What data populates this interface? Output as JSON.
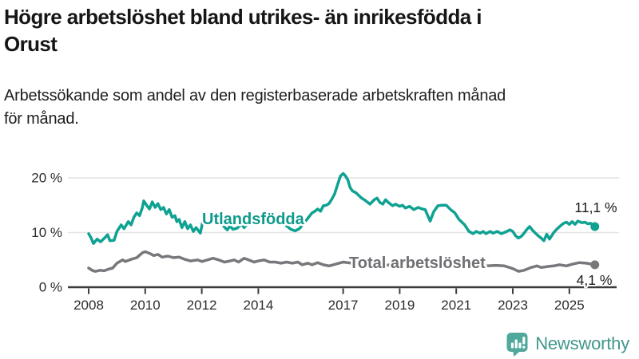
{
  "header": {
    "title": "Högre arbetslöshet bland utrikes- än inrikesfödda i Orust",
    "title_lines": [
      "Högre arbetslöshet bland utrikes- än inrikesfödda i",
      "Orust"
    ],
    "subtitle": "Arbetssökande som andel av den registerbaserade arbetskraften månad för månad.",
    "subtitle_lines": [
      "Arbetssökande som andel av den registerbaserade arbetskraften månad",
      "för månad."
    ]
  },
  "footer": {
    "logo_text": "Newsworthy",
    "logo_icon": "bar-chart-speech-bubble-icon",
    "logo_icon_color": "#4FA89B",
    "logo_text_color": "#3F988C"
  },
  "colors": {
    "foreign_born_line": "#0FA192",
    "foreign_born_label": "#0E9A8C",
    "total_line": "#78787C",
    "total_label": "#6F6F74",
    "gridline": "#E4E4E4",
    "axis": "#3C3C3C",
    "text": "#1A1A1A"
  },
  "chart_data": {
    "type": "line",
    "title": "Högre arbetslöshet bland utrikes- än inrikesfödda i Orust",
    "subtitle": "Arbetssökande som andel av den registerbaserade arbetskraften månad för månad.",
    "x_unit": "år (månadsdata som decimalår)",
    "y_unit": "%",
    "grid": "horizontal",
    "legend_position": "inline-labels",
    "x_axis": {
      "ticks": [
        2008,
        2010,
        2012,
        2014,
        2017,
        2019,
        2021,
        2023,
        2025
      ],
      "range": [
        2007.9,
        2026.6
      ]
    },
    "y_axis": {
      "ticks": [
        {
          "value": 0,
          "label": "0 %"
        },
        {
          "value": 10,
          "label": "10 %"
        },
        {
          "value": 20,
          "label": "20 %"
        }
      ],
      "range": [
        0,
        21.8
      ]
    },
    "series": [
      {
        "name": "Utlandsfödda",
        "color": "#0FA192",
        "end_value": 11.1,
        "end_value_label": "11,1 %",
        "points": [
          [
            2008.0,
            9.8
          ],
          [
            2008.08,
            9.1
          ],
          [
            2008.17,
            8.0
          ],
          [
            2008.3,
            8.8
          ],
          [
            2008.42,
            8.3
          ],
          [
            2008.58,
            9.1
          ],
          [
            2008.67,
            9.6
          ],
          [
            2008.75,
            8.5
          ],
          [
            2008.9,
            8.6
          ],
          [
            2009.0,
            10.2
          ],
          [
            2009.15,
            11.4
          ],
          [
            2009.25,
            10.7
          ],
          [
            2009.4,
            12.0
          ],
          [
            2009.5,
            11.4
          ],
          [
            2009.6,
            12.8
          ],
          [
            2009.7,
            13.6
          ],
          [
            2009.8,
            13.1
          ],
          [
            2009.9,
            14.6
          ],
          [
            2009.95,
            15.8
          ],
          [
            2010.05,
            15.0
          ],
          [
            2010.15,
            14.3
          ],
          [
            2010.25,
            15.6
          ],
          [
            2010.35,
            14.6
          ],
          [
            2010.45,
            15.3
          ],
          [
            2010.55,
            14.2
          ],
          [
            2010.65,
            14.6
          ],
          [
            2010.75,
            13.4
          ],
          [
            2010.85,
            14.2
          ],
          [
            2010.95,
            12.8
          ],
          [
            2011.05,
            13.1
          ],
          [
            2011.12,
            12.0
          ],
          [
            2011.2,
            12.4
          ],
          [
            2011.3,
            10.9
          ],
          [
            2011.4,
            12.0
          ],
          [
            2011.5,
            10.7
          ],
          [
            2011.6,
            11.4
          ],
          [
            2011.7,
            10.2
          ],
          [
            2011.8,
            10.9
          ],
          [
            2011.95,
            9.9
          ],
          [
            2012.05,
            12.4
          ],
          [
            2012.2,
            11.8
          ],
          [
            2012.35,
            12.4
          ],
          [
            2012.5,
            11.6
          ],
          [
            2012.65,
            12.0
          ],
          [
            2012.8,
            11.0
          ],
          [
            2012.9,
            10.5
          ],
          [
            2013.0,
            11.2
          ],
          [
            2013.1,
            10.6
          ],
          [
            2013.25,
            10.8
          ],
          [
            2013.4,
            11.5
          ],
          [
            2013.5,
            10.9
          ],
          [
            2013.65,
            11.8
          ],
          [
            2013.8,
            12.2
          ],
          [
            2013.95,
            11.6
          ],
          [
            2014.1,
            12.5
          ],
          [
            2014.25,
            13.2
          ],
          [
            2014.4,
            12.6
          ],
          [
            2014.55,
            13.0
          ],
          [
            2014.7,
            12.4
          ],
          [
            2014.85,
            11.8
          ],
          [
            2015.0,
            11.2
          ],
          [
            2015.15,
            10.6
          ],
          [
            2015.3,
            10.3
          ],
          [
            2015.45,
            10.7
          ],
          [
            2015.6,
            11.6
          ],
          [
            2015.75,
            12.6
          ],
          [
            2015.9,
            13.6
          ],
          [
            2016.0,
            13.9
          ],
          [
            2016.1,
            14.3
          ],
          [
            2016.2,
            13.9
          ],
          [
            2016.3,
            14.9
          ],
          [
            2016.4,
            15.0
          ],
          [
            2016.5,
            15.3
          ],
          [
            2016.6,
            16.1
          ],
          [
            2016.7,
            17.1
          ],
          [
            2016.8,
            18.7
          ],
          [
            2016.9,
            20.3
          ],
          [
            2017.0,
            20.8
          ],
          [
            2017.08,
            20.4
          ],
          [
            2017.17,
            19.6
          ],
          [
            2017.25,
            18.2
          ],
          [
            2017.33,
            17.6
          ],
          [
            2017.45,
            17.3
          ],
          [
            2017.55,
            16.8
          ],
          [
            2017.65,
            16.3
          ],
          [
            2017.75,
            16.0
          ],
          [
            2017.85,
            15.6
          ],
          [
            2017.95,
            15.2
          ],
          [
            2018.1,
            16.0
          ],
          [
            2018.2,
            16.3
          ],
          [
            2018.3,
            15.5
          ],
          [
            2018.4,
            15.2
          ],
          [
            2018.5,
            16.0
          ],
          [
            2018.6,
            15.5
          ],
          [
            2018.75,
            14.9
          ],
          [
            2018.85,
            15.2
          ],
          [
            2019.0,
            14.8
          ],
          [
            2019.1,
            15.0
          ],
          [
            2019.2,
            14.5
          ],
          [
            2019.35,
            14.8
          ],
          [
            2019.5,
            14.2
          ],
          [
            2019.65,
            14.6
          ],
          [
            2019.8,
            14.3
          ],
          [
            2019.9,
            14.2
          ],
          [
            2020.0,
            13.0
          ],
          [
            2020.08,
            12.1
          ],
          [
            2020.2,
            13.8
          ],
          [
            2020.35,
            14.9
          ],
          [
            2020.5,
            15.0
          ],
          [
            2020.65,
            15.0
          ],
          [
            2020.8,
            14.2
          ],
          [
            2020.95,
            13.6
          ],
          [
            2021.1,
            12.4
          ],
          [
            2021.3,
            11.4
          ],
          [
            2021.45,
            10.2
          ],
          [
            2021.6,
            9.8
          ],
          [
            2021.7,
            10.2
          ],
          [
            2021.85,
            9.9
          ],
          [
            2021.95,
            10.2
          ],
          [
            2022.05,
            9.8
          ],
          [
            2022.2,
            10.2
          ],
          [
            2022.3,
            9.9
          ],
          [
            2022.45,
            10.2
          ],
          [
            2022.6,
            9.8
          ],
          [
            2022.75,
            10.1
          ],
          [
            2022.9,
            10.5
          ],
          [
            2023.0,
            10.2
          ],
          [
            2023.1,
            9.4
          ],
          [
            2023.2,
            9.0
          ],
          [
            2023.3,
            9.3
          ],
          [
            2023.4,
            9.9
          ],
          [
            2023.5,
            10.6
          ],
          [
            2023.6,
            11.1
          ],
          [
            2023.7,
            10.4
          ],
          [
            2023.8,
            9.9
          ],
          [
            2023.9,
            9.4
          ],
          [
            2024.0,
            9.0
          ],
          [
            2024.1,
            8.5
          ],
          [
            2024.2,
            9.7
          ],
          [
            2024.3,
            8.8
          ],
          [
            2024.45,
            10.0
          ],
          [
            2024.55,
            10.6
          ],
          [
            2024.7,
            11.3
          ],
          [
            2024.8,
            11.7
          ],
          [
            2024.9,
            11.9
          ],
          [
            2025.0,
            11.5
          ],
          [
            2025.1,
            12.0
          ],
          [
            2025.2,
            11.5
          ],
          [
            2025.3,
            12.1
          ],
          [
            2025.45,
            11.8
          ],
          [
            2025.55,
            11.9
          ],
          [
            2025.65,
            11.6
          ],
          [
            2025.75,
            11.7
          ],
          [
            2025.9,
            11.1
          ]
        ]
      },
      {
        "name": "Total arbetslöshet",
        "color": "#78787C",
        "end_value": 4.1,
        "end_value_label": "4,1 %",
        "points": [
          [
            2008.0,
            3.5
          ],
          [
            2008.15,
            3.0
          ],
          [
            2008.25,
            2.9
          ],
          [
            2008.4,
            3.1
          ],
          [
            2008.55,
            3.0
          ],
          [
            2008.7,
            3.3
          ],
          [
            2008.85,
            3.5
          ],
          [
            2009.0,
            4.4
          ],
          [
            2009.2,
            5.0
          ],
          [
            2009.3,
            4.7
          ],
          [
            2009.5,
            5.1
          ],
          [
            2009.7,
            5.4
          ],
          [
            2009.9,
            6.3
          ],
          [
            2010.0,
            6.5
          ],
          [
            2010.15,
            6.2
          ],
          [
            2010.3,
            5.8
          ],
          [
            2010.45,
            6.0
          ],
          [
            2010.6,
            5.5
          ],
          [
            2010.8,
            5.7
          ],
          [
            2011.0,
            5.4
          ],
          [
            2011.2,
            5.5
          ],
          [
            2011.4,
            5.1
          ],
          [
            2011.6,
            4.8
          ],
          [
            2011.85,
            5.0
          ],
          [
            2012.0,
            4.7
          ],
          [
            2012.2,
            5.0
          ],
          [
            2012.4,
            5.3
          ],
          [
            2012.6,
            5.0
          ],
          [
            2012.8,
            4.6
          ],
          [
            2013.0,
            4.8
          ],
          [
            2013.15,
            5.0
          ],
          [
            2013.3,
            4.6
          ],
          [
            2013.5,
            5.3
          ],
          [
            2013.7,
            4.9
          ],
          [
            2013.85,
            4.6
          ],
          [
            2014.0,
            4.8
          ],
          [
            2014.2,
            5.0
          ],
          [
            2014.4,
            4.6
          ],
          [
            2014.6,
            4.6
          ],
          [
            2014.8,
            4.4
          ],
          [
            2015.0,
            4.6
          ],
          [
            2015.2,
            4.4
          ],
          [
            2015.4,
            4.6
          ],
          [
            2015.55,
            4.1
          ],
          [
            2015.75,
            4.4
          ],
          [
            2015.9,
            4.1
          ],
          [
            2016.1,
            4.5
          ],
          [
            2016.3,
            4.1
          ],
          [
            2016.5,
            3.9
          ],
          [
            2016.65,
            4.1
          ],
          [
            2016.85,
            4.4
          ],
          [
            2017.0,
            4.6
          ],
          [
            2017.3,
            4.4
          ],
          [
            2017.6,
            4.2
          ],
          [
            2017.9,
            4.4
          ],
          [
            2018.2,
            4.1
          ],
          [
            2018.5,
            4.0
          ],
          [
            2018.8,
            4.2
          ],
          [
            2019.1,
            4.0
          ],
          [
            2019.4,
            4.1
          ],
          [
            2019.7,
            3.9
          ],
          [
            2020.0,
            4.1
          ],
          [
            2020.3,
            4.6
          ],
          [
            2020.6,
            4.5
          ],
          [
            2020.9,
            4.3
          ],
          [
            2021.2,
            4.2
          ],
          [
            2021.5,
            4.0
          ],
          [
            2021.8,
            4.1
          ],
          [
            2022.1,
            3.9
          ],
          [
            2022.4,
            4.0
          ],
          [
            2022.7,
            3.9
          ],
          [
            2023.0,
            3.4
          ],
          [
            2023.2,
            2.9
          ],
          [
            2023.4,
            3.1
          ],
          [
            2023.65,
            3.6
          ],
          [
            2023.85,
            3.9
          ],
          [
            2024.0,
            3.6
          ],
          [
            2024.25,
            3.8
          ],
          [
            2024.45,
            3.9
          ],
          [
            2024.65,
            4.1
          ],
          [
            2024.9,
            3.9
          ],
          [
            2025.1,
            4.2
          ],
          [
            2025.35,
            4.5
          ],
          [
            2025.6,
            4.4
          ],
          [
            2025.9,
            4.1
          ]
        ]
      }
    ]
  }
}
